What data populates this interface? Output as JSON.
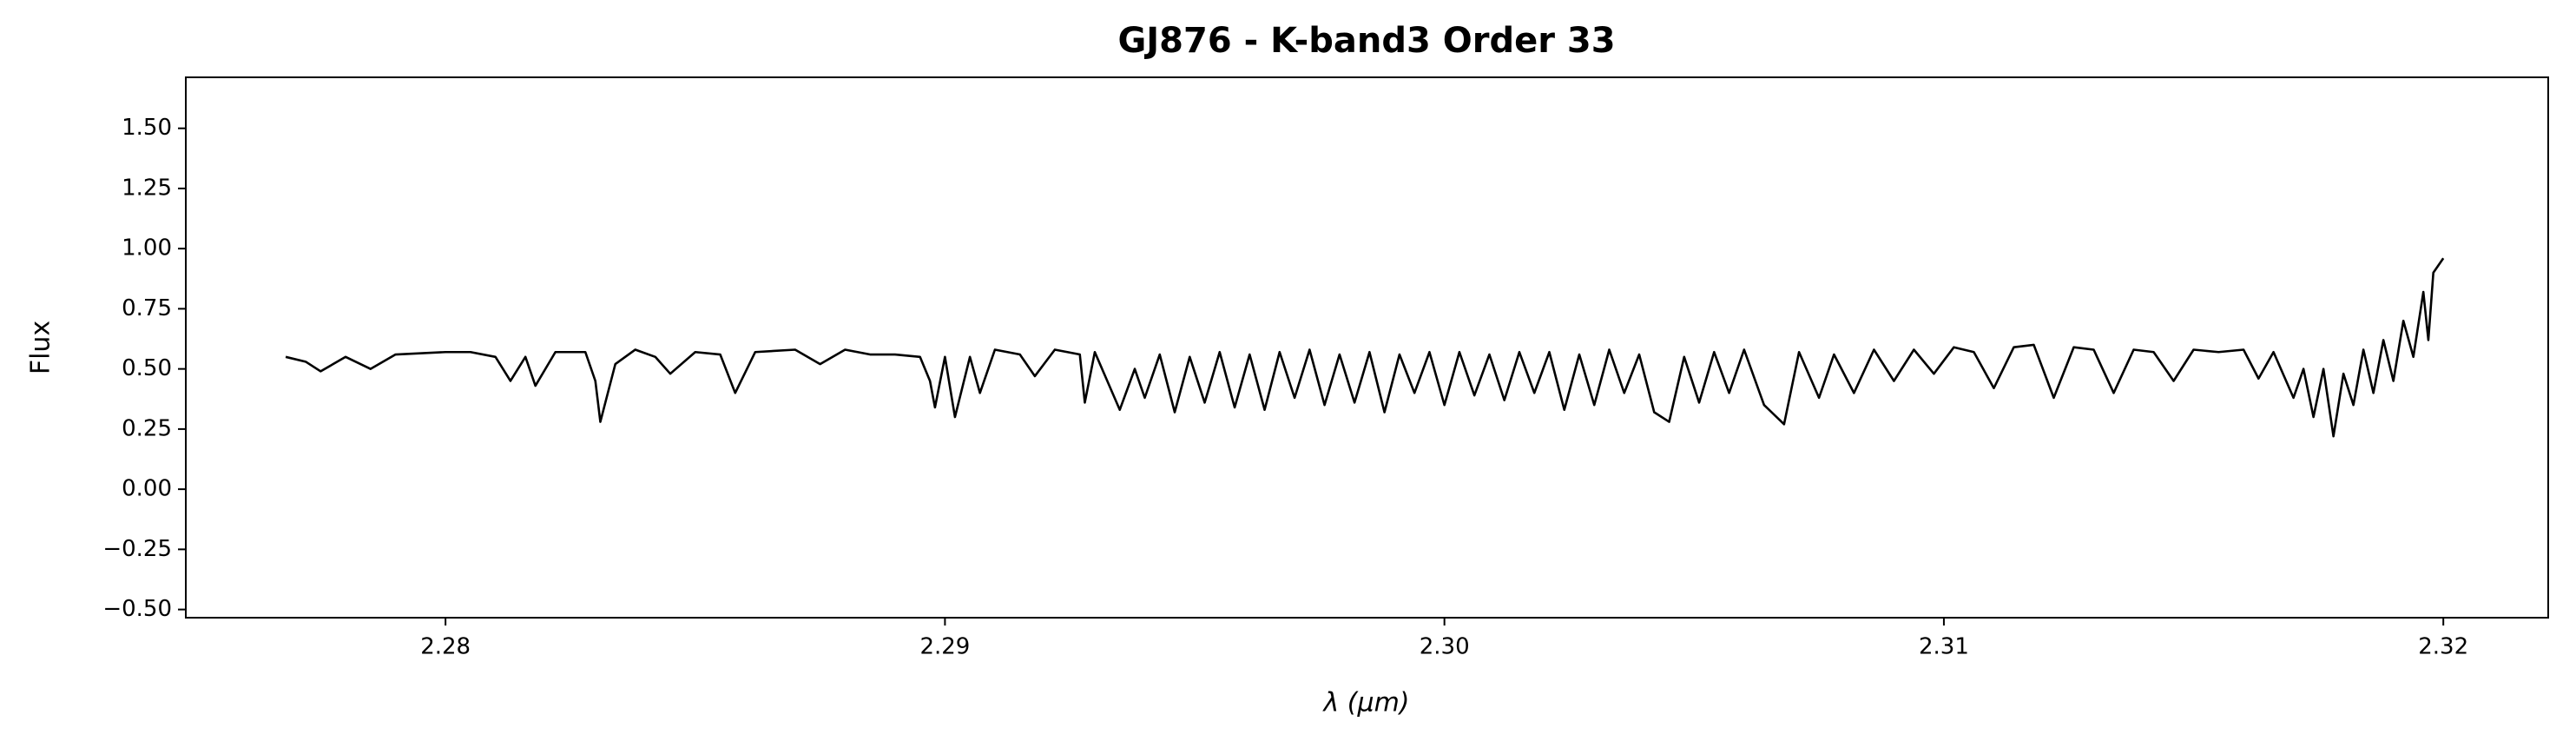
{
  "chart_data": {
    "type": "line",
    "title": "GJ876 - K-band3 Order 33",
    "xlabel": "λ (μm)",
    "ylabel": "Flux",
    "color": "#000000",
    "xlim": [
      2.2748,
      2.3221
    ],
    "ylim": [
      -0.534,
      1.712
    ],
    "xticks": [
      2.28,
      2.29,
      {
        "value": 2.3,
        "label": "2.30"
      },
      2.31,
      2.32
    ],
    "yticks": [
      {
        "value": -0.5,
        "label": "−0.50"
      },
      {
        "value": -0.25,
        "label": "−0.25"
      },
      {
        "value": 0,
        "label": "0.00"
      },
      {
        "value": 0.25,
        "label": "0.25"
      },
      {
        "value": 0.5,
        "label": "0.50"
      },
      {
        "value": 0.75,
        "label": "0.75"
      },
      {
        "value": 1,
        "label": "1.00"
      },
      {
        "value": 1.25,
        "label": "1.25"
      },
      {
        "value": 1.5,
        "label": "1.50"
      }
    ],
    "x": [
      2.2768,
      2.2772,
      2.2775,
      2.278,
      2.2785,
      2.279,
      2.28,
      2.2805,
      2.281,
      2.2813,
      2.2816,
      2.2818,
      2.2822,
      2.2828,
      2.283,
      2.2831,
      2.2834,
      2.2838,
      2.2842,
      2.2845,
      2.285,
      2.2855,
      2.2858,
      2.2862,
      2.287,
      2.2875,
      2.288,
      2.2885,
      2.289,
      2.2895,
      2.2897,
      2.2898,
      2.29,
      2.2902,
      2.2905,
      2.2907,
      2.291,
      2.2915,
      2.2918,
      2.2922,
      2.2927,
      2.2928,
      2.293,
      2.2935,
      2.2938,
      2.294,
      2.2943,
      2.2946,
      2.2949,
      2.2952,
      2.2955,
      2.2958,
      2.2961,
      2.2964,
      2.2967,
      2.297,
      2.2973,
      2.2976,
      2.2979,
      2.2982,
      2.2985,
      2.2988,
      2.2991,
      2.2994,
      2.2997,
      2.3,
      2.3003,
      2.3006,
      2.3009,
      2.3012,
      2.3015,
      2.3018,
      2.3021,
      2.3024,
      2.3027,
      2.303,
      2.3033,
      2.3036,
      2.3039,
      2.3042,
      2.3045,
      2.3048,
      2.3051,
      2.3054,
      2.3057,
      2.306,
      2.3064,
      2.3068,
      2.3071,
      2.3075,
      2.3078,
      2.3082,
      2.3086,
      2.309,
      2.3094,
      2.3098,
      2.3102,
      2.3106,
      2.311,
      2.3114,
      2.3118,
      2.3122,
      2.3126,
      2.313,
      2.3134,
      2.3138,
      2.3142,
      2.3146,
      2.315,
      2.3155,
      2.316,
      2.3163,
      2.3166,
      2.317,
      2.3172,
      2.3174,
      2.3176,
      2.3178,
      2.318,
      2.3182,
      2.3184,
      2.3186,
      2.3188,
      2.319,
      2.3192,
      2.3194,
      2.3196,
      2.3197,
      2.3198,
      2.32
    ],
    "values": [
      0.55,
      0.53,
      0.49,
      0.55,
      0.5,
      0.56,
      0.57,
      0.57,
      0.55,
      0.45,
      0.55,
      0.43,
      0.57,
      0.57,
      0.45,
      0.28,
      0.52,
      0.58,
      0.55,
      0.48,
      0.57,
      0.56,
      0.4,
      0.57,
      0.58,
      0.52,
      0.58,
      0.56,
      0.56,
      0.55,
      0.45,
      0.34,
      0.55,
      0.3,
      0.55,
      0.4,
      0.58,
      0.56,
      0.47,
      0.58,
      0.56,
      0.36,
      0.57,
      0.33,
      0.5,
      0.38,
      0.56,
      0.32,
      0.55,
      0.36,
      0.57,
      0.34,
      0.56,
      0.33,
      0.57,
      0.38,
      0.58,
      0.35,
      0.56,
      0.36,
      0.57,
      0.32,
      0.56,
      0.4,
      0.57,
      0.35,
      0.57,
      0.39,
      0.56,
      0.37,
      0.57,
      0.4,
      0.57,
      0.33,
      0.56,
      0.35,
      0.58,
      0.4,
      0.56,
      0.32,
      0.28,
      0.55,
      0.36,
      0.57,
      0.4,
      0.58,
      0.35,
      0.27,
      0.57,
      0.38,
      0.56,
      0.4,
      0.58,
      0.45,
      0.58,
      0.48,
      0.59,
      0.57,
      0.42,
      0.59,
      0.6,
      0.38,
      0.59,
      0.58,
      0.4,
      0.58,
      0.57,
      0.45,
      0.58,
      0.57,
      0.58,
      0.46,
      0.57,
      0.38,
      0.5,
      0.3,
      0.5,
      0.22,
      0.48,
      0.35,
      0.58,
      0.4,
      0.62,
      0.45,
      0.7,
      0.55,
      0.82,
      0.62,
      0.9,
      0.96
    ]
  }
}
